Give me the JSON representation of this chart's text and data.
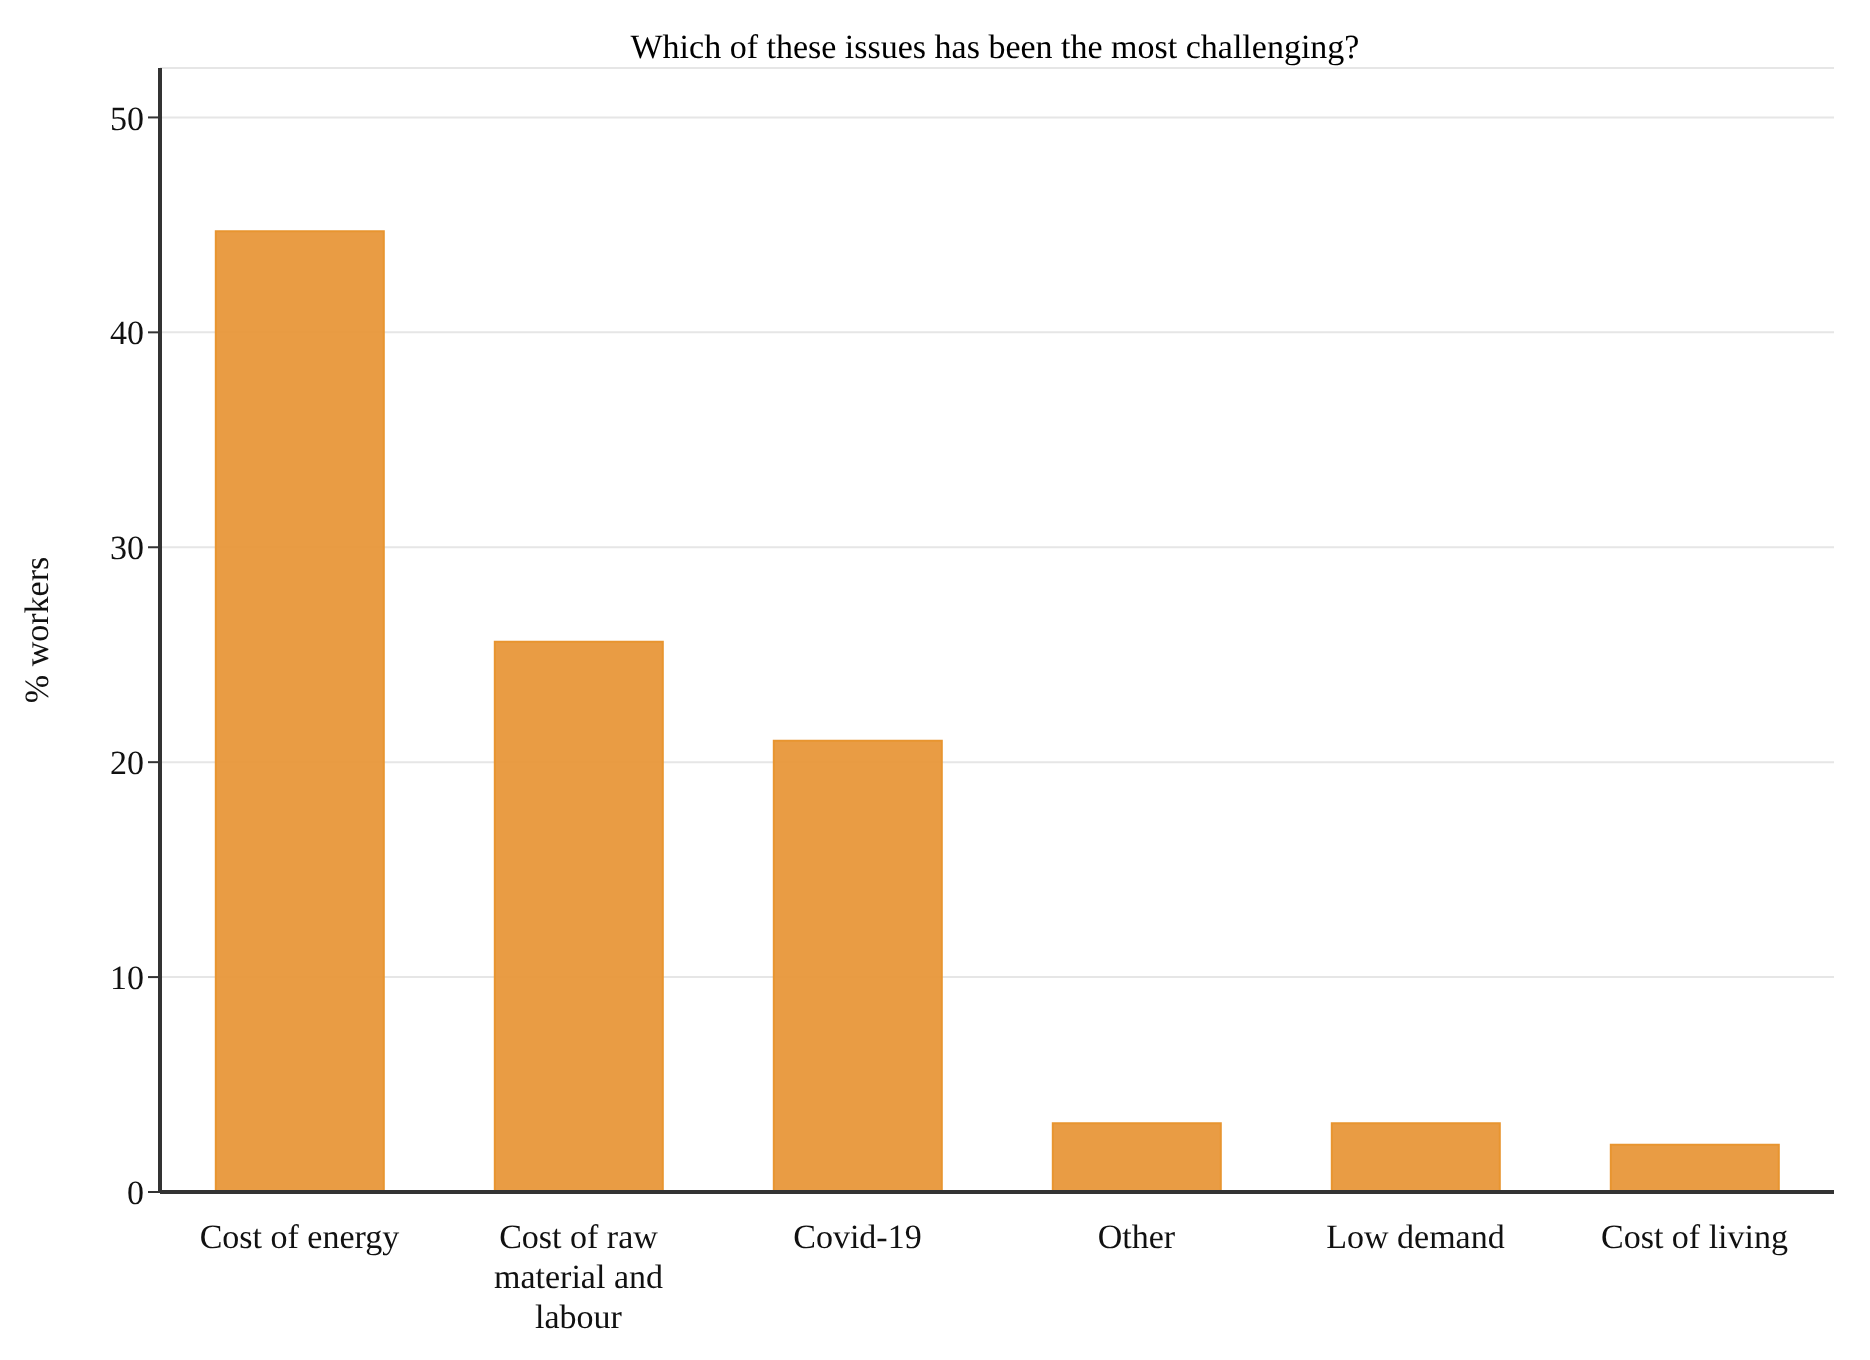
{
  "chart_data": {
    "type": "bar",
    "title": "Which of these issues has been the most challenging?",
    "ylabel": "% workers",
    "categories": [
      "Cost of energy",
      "Cost of raw material and labour",
      "Covid-19",
      "Other",
      "Low demand",
      "Cost of living"
    ],
    "values": [
      44.7,
      25.6,
      21.0,
      3.2,
      3.2,
      2.2
    ],
    "color": "#e8973a",
    "ylim": [
      0,
      52.3
    ],
    "yticks": [
      0,
      10,
      20,
      30,
      40,
      50
    ],
    "grid": "y",
    "legend": false
  }
}
